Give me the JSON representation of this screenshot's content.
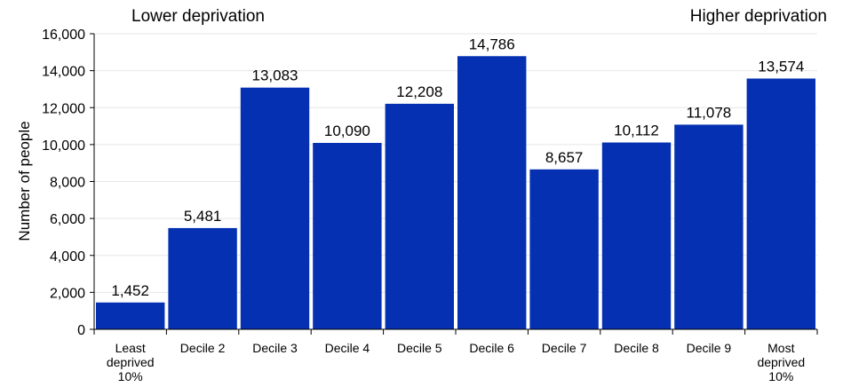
{
  "chart_data": {
    "type": "bar",
    "categories": [
      [
        "Least",
        "deprived",
        "10%"
      ],
      [
        "Decile 2"
      ],
      [
        "Decile 3"
      ],
      [
        "Decile 4"
      ],
      [
        "Decile 5"
      ],
      [
        "Decile 6"
      ],
      [
        "Decile 7"
      ],
      [
        "Decile 8"
      ],
      [
        "Decile 9"
      ],
      [
        "Most",
        "deprived",
        "10%"
      ]
    ],
    "values": [
      1452,
      5481,
      13083,
      10090,
      12208,
      14786,
      8657,
      10112,
      11078,
      13574
    ],
    "value_labels": [
      "1,452",
      "5,481",
      "13,083",
      "10,090",
      "12,208",
      "14,786",
      "8,657",
      "10,112",
      "11,078",
      "13,574"
    ],
    "ylabel": "Number of people",
    "ylim": [
      0,
      16000
    ],
    "yticks": [
      0,
      2000,
      4000,
      6000,
      8000,
      10000,
      12000,
      14000,
      16000
    ],
    "ytick_labels": [
      "0",
      "2,000",
      "4,000",
      "6,000",
      "8,000",
      "10,000",
      "12,000",
      "14,000",
      "16,000"
    ],
    "annotations": {
      "left": "Lower deprivation",
      "right": "Higher deprivation"
    },
    "grid": true,
    "legend": "none",
    "colors": {
      "bar": "#0530B2",
      "grid": "#E6E6E6",
      "axis": "#000000"
    }
  }
}
